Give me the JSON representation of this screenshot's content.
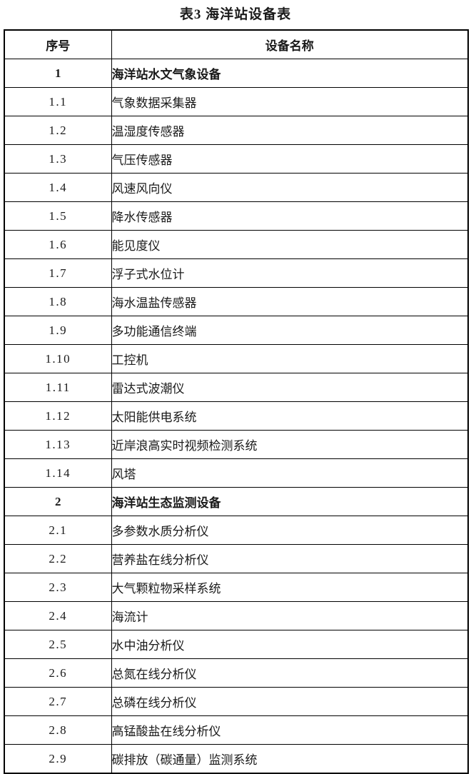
{
  "title": "表3  海洋站设备表",
  "colors": {
    "background": "#ffffff",
    "border": "#000000",
    "text": "#1a1a1a"
  },
  "table": {
    "columns": [
      {
        "label": "序号"
      },
      {
        "label": "设备名称"
      }
    ],
    "rows": [
      {
        "serial": "1",
        "name": "海洋站水文气象设备",
        "section": true
      },
      {
        "serial": "1.1",
        "name": "气象数据采集器",
        "section": false
      },
      {
        "serial": "1.2",
        "name": "温湿度传感器",
        "section": false
      },
      {
        "serial": "1.3",
        "name": "气压传感器",
        "section": false
      },
      {
        "serial": "1.4",
        "name": "风速风向仪",
        "section": false
      },
      {
        "serial": "1.5",
        "name": "降水传感器",
        "section": false
      },
      {
        "serial": "1.6",
        "name": "能见度仪",
        "section": false
      },
      {
        "serial": "1.7",
        "name": "浮子式水位计",
        "section": false
      },
      {
        "serial": "1.8",
        "name": "海水温盐传感器",
        "section": false
      },
      {
        "serial": "1.9",
        "name": "多功能通信终端",
        "section": false
      },
      {
        "serial": "1.10",
        "name": "工控机",
        "section": false
      },
      {
        "serial": "1.11",
        "name": "雷达式波潮仪",
        "section": false
      },
      {
        "serial": "1.12",
        "name": "太阳能供电系统",
        "section": false
      },
      {
        "serial": "1.13",
        "name": "近岸浪高实时视频检测系统",
        "section": false
      },
      {
        "serial": "1.14",
        "name": "风塔",
        "section": false
      },
      {
        "serial": "2",
        "name": "海洋站生态监测设备",
        "section": true
      },
      {
        "serial": "2.1",
        "name": "多参数水质分析仪",
        "section": false
      },
      {
        "serial": "2.2",
        "name": "营养盐在线分析仪",
        "section": false
      },
      {
        "serial": "2.3",
        "name": "大气颗粒物采样系统",
        "section": false
      },
      {
        "serial": "2.4",
        "name": "海流计",
        "section": false
      },
      {
        "serial": "2.5",
        "name": "水中油分析仪",
        "section": false
      },
      {
        "serial": "2.6",
        "name": "总氮在线分析仪",
        "section": false
      },
      {
        "serial": "2.7",
        "name": "总磷在线分析仪",
        "section": false
      },
      {
        "serial": "2.8",
        "name": "高锰酸盐在线分析仪",
        "section": false
      },
      {
        "serial": "2.9",
        "name": "碳排放（碳通量）监测系统",
        "section": false
      }
    ]
  }
}
